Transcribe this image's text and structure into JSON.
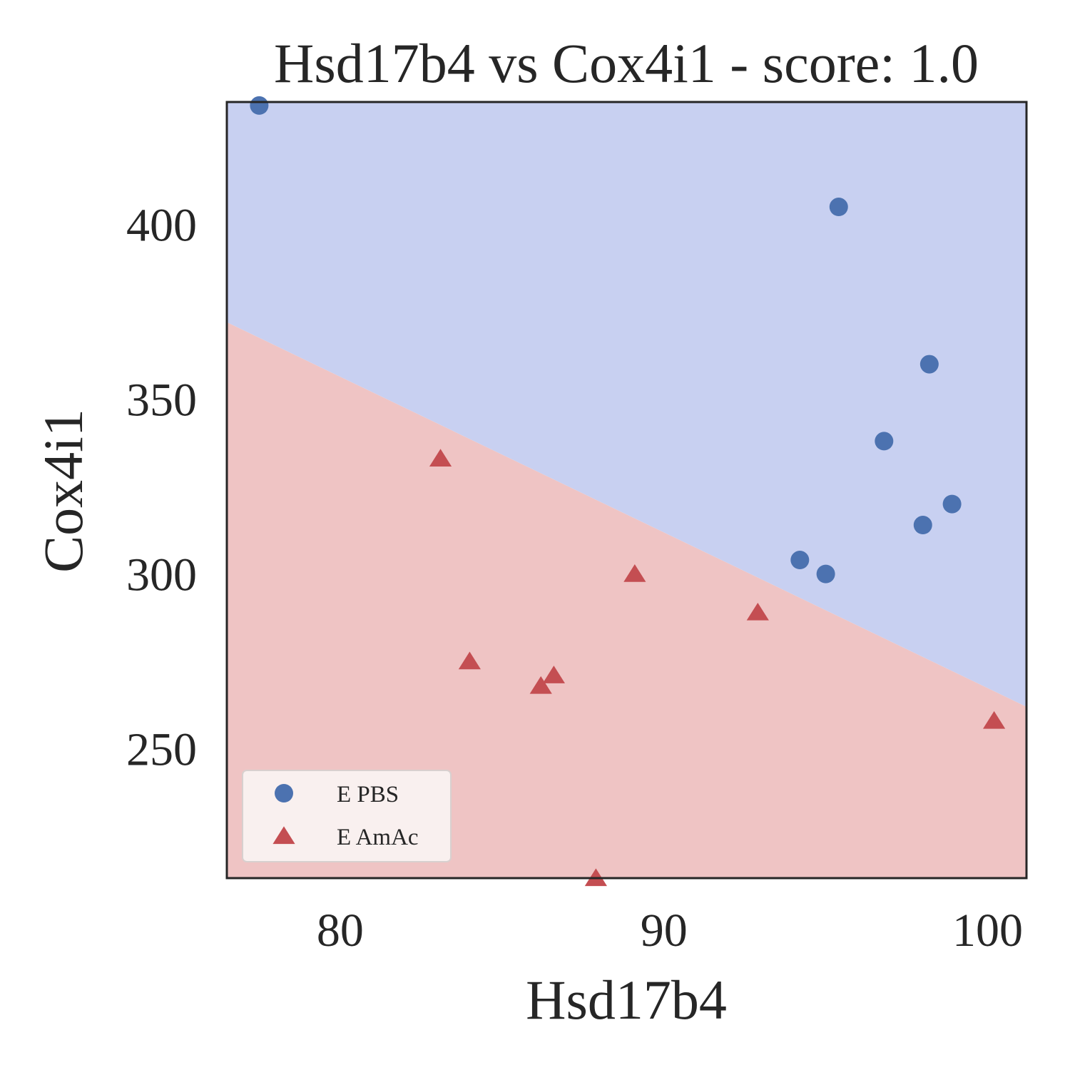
{
  "chart_data": {
    "type": "scatter",
    "title": "Hsd17b4 vs Cox4i1 - score: 1.0",
    "xlabel": "Hsd17b4",
    "ylabel": "Cox4i1",
    "xlim": [
      76.5,
      101.2
    ],
    "ylim": [
      213,
      435
    ],
    "xticks": [
      80,
      90,
      100
    ],
    "yticks": [
      250,
      300,
      350,
      400
    ],
    "grid": false,
    "legend_position": "lower-left",
    "decision_boundary": {
      "points": [
        [
          76.5,
          372
        ],
        [
          101.2,
          262
        ]
      ],
      "upper_region_class": "E PBS",
      "lower_region_class": "E AmAc",
      "upper_color": "#c8d0f1",
      "lower_color": "#efc4c4"
    },
    "series": [
      {
        "name": "E PBS",
        "marker": "circle",
        "color": "#4c72b0",
        "points": [
          [
            77.5,
            434
          ],
          [
            95.4,
            405
          ],
          [
            98.2,
            360
          ],
          [
            96.8,
            338
          ],
          [
            98.9,
            320
          ],
          [
            98.0,
            314
          ],
          [
            94.2,
            304
          ],
          [
            95.0,
            300
          ]
        ]
      },
      {
        "name": "E AmAc",
        "marker": "triangle",
        "color": "#c44e52",
        "points": [
          [
            83.1,
            333
          ],
          [
            89.1,
            300
          ],
          [
            92.9,
            289
          ],
          [
            84.0,
            275
          ],
          [
            86.6,
            271
          ],
          [
            86.2,
            268
          ],
          [
            100.2,
            258
          ],
          [
            87.9,
            213
          ]
        ]
      }
    ]
  }
}
